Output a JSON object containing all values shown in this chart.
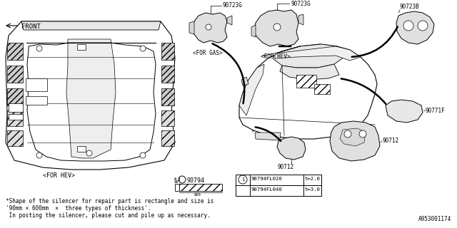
{
  "bg_color": "#ffffff",
  "text_color": "#000000",
  "labels": {
    "front": "FRONT",
    "for_gas": "<FOR GAS>",
    "for_hev_top": "<FOR HEV>",
    "for_hev_bottom": "<FOR HEV>",
    "note1": "*Shape of the silencer for repair part is rectangle and size is",
    "note2": "'90mm × 600mm  ×  three types of thickness'.",
    "note3": " In posting the silencer, please cut and pile up as necessary.",
    "diagram_num": "A953001174",
    "p90723G": "90723G",
    "p90723B": "90723B",
    "p90771F": "90771F",
    "p90712": "90712",
    "p90794": "90794",
    "p90794FL020": "90794FL020",
    "p90794FL040": "90794FL040",
    "t20": "t=2.0",
    "t30": "t=3.0"
  }
}
